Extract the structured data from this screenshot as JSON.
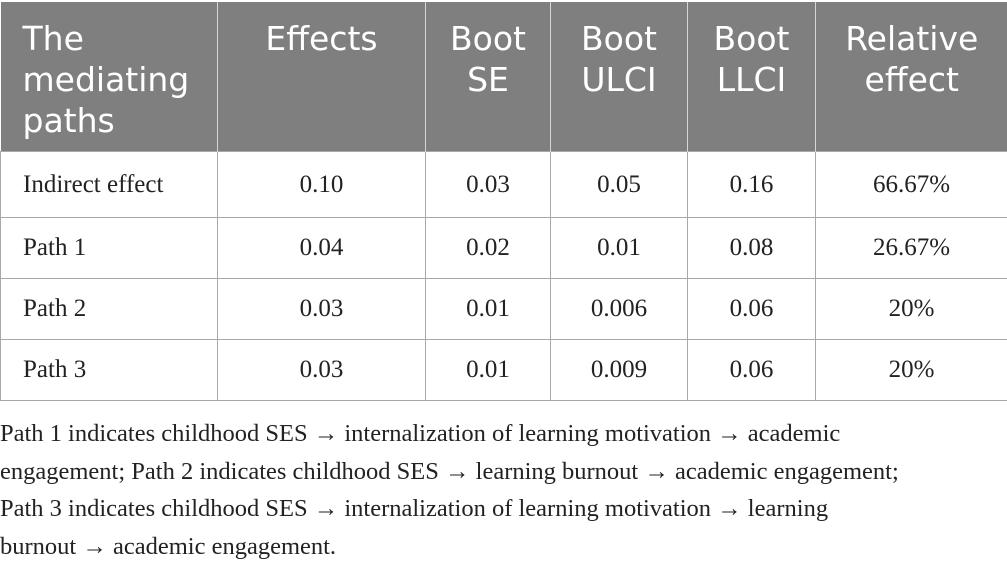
{
  "table": {
    "headers": [
      "The mediating paths",
      "Effects",
      "Boot SE",
      "Boot ULCI",
      "Boot LLCI",
      "Relative effect"
    ],
    "rows": [
      [
        "Indirect effect",
        "0.10",
        "0.03",
        "0.05",
        "0.16",
        "66.67%"
      ],
      [
        "Path 1",
        "0.04",
        "0.02",
        "0.01",
        "0.08",
        "26.67%"
      ],
      [
        "Path 2",
        "0.03",
        "0.01",
        "0.006",
        "0.06",
        "20%"
      ],
      [
        "Path 3",
        "0.03",
        "0.01",
        "0.009",
        "0.06",
        "20%"
      ]
    ],
    "header_bg": "#7f7f7f"
  },
  "footnote": {
    "lines": [
      "Path 1 indicates childhood SES → internalization of learning motivation → academic",
      "engagement; Path 2 indicates childhood SES → learning burnout → academic engagement;",
      "Path 3 indicates childhood SES → internalization of learning motivation → learning",
      "burnout → academic engagement."
    ]
  }
}
